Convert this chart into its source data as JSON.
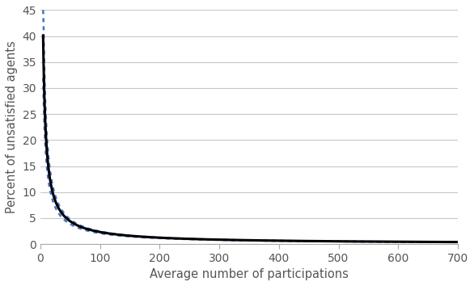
{
  "title": "",
  "xlabel": "Average number of participations",
  "ylabel": "Percent of unsatisfied agents",
  "xlim": [
    0,
    700
  ],
  "ylim": [
    0,
    45
  ],
  "yticks": [
    0,
    5,
    10,
    15,
    20,
    25,
    30,
    35,
    40,
    45
  ],
  "xticks": [
    0,
    100,
    200,
    300,
    400,
    500,
    600,
    700
  ],
  "mean_coeff": 160.0,
  "mean_power": 0.92,
  "upper_coeff": 210.0,
  "upper_power": 0.97,
  "lower_coeff": 120.0,
  "lower_power": 0.88,
  "x_start": 4.5,
  "line_color_solid": "#000000",
  "line_color_dotted": "#4472C4",
  "background_color": "#ffffff",
  "grid_color": "#c8c8c8"
}
